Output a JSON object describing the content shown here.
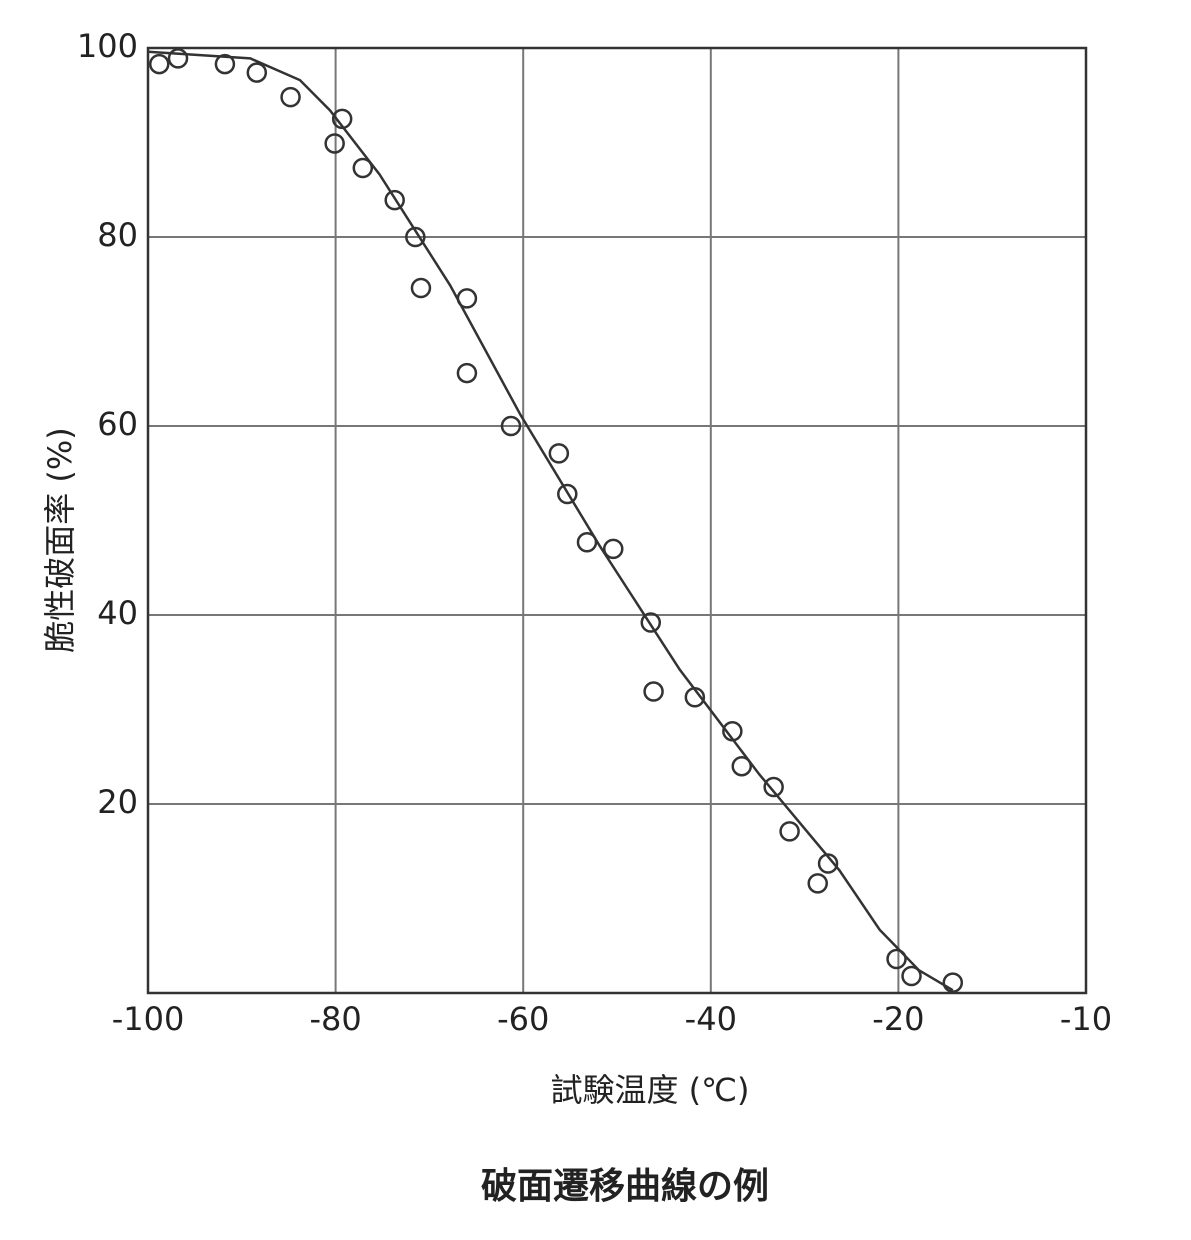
{
  "chart_data": {
    "type": "scatter",
    "title": "破面遷移曲線の例",
    "x_label": "試験温度 (℃)",
    "y_label": "脆性破面率 (%)",
    "xlim": [
      -100,
      -10
    ],
    "xticks": [
      -100,
      -80,
      -60,
      -40,
      -20,
      -10
    ],
    "ylim": [
      0,
      100
    ],
    "yticks": [
      20,
      40,
      60,
      80,
      100
    ],
    "grid": true,
    "series": [
      {
        "type": "scatter",
        "color": "#333333",
        "x": [
          -98.8,
          -96.8,
          -91.8,
          -88.4,
          -84.8,
          -79.3,
          -80.1,
          -77.1,
          -73.7,
          -71.5,
          -70.9,
          -66.0,
          -66.0,
          -61.3,
          -56.2,
          -55.3,
          -53.2,
          -50.4,
          -46.4,
          -46.1,
          -41.7,
          -37.7,
          -36.7,
          -33.3,
          -31.6,
          -27.5,
          -28.6,
          -20.2,
          -19.3,
          -17.1
        ],
        "values": [
          98.3,
          98.9,
          98.3,
          97.4,
          94.8,
          92.5,
          89.9,
          87.3,
          83.9,
          80.0,
          74.6,
          73.5,
          65.6,
          60.0,
          57.1,
          52.8,
          47.7,
          47.0,
          39.2,
          31.9,
          31.3,
          27.7,
          24.0,
          21.8,
          17.1,
          13.7,
          11.6,
          3.6,
          1.8,
          1.1
        ]
      },
      {
        "type": "line",
        "color": "#333333",
        "x": [
          -100,
          -89.1,
          -83.8,
          -80.6,
          -75.3,
          -67.8,
          -60.3,
          -51.9,
          -43.3,
          -34.8,
          -26.3,
          -22.0,
          -18.9,
          -17.1
        ],
        "values": [
          99.6,
          98.9,
          96.6,
          93.4,
          86.6,
          74.9,
          61.2,
          47.4,
          34.2,
          23.1,
          13.0,
          6.7,
          2.4,
          0.3
        ]
      }
    ]
  }
}
